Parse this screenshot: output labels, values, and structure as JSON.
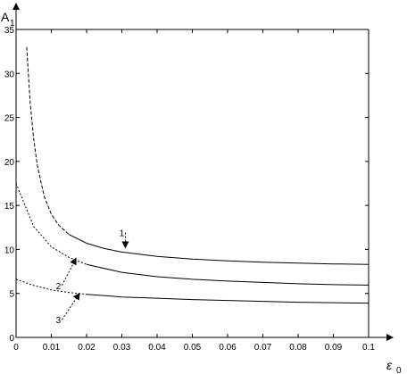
{
  "chart_data": {
    "type": "line",
    "xlabel": "ε",
    "xlabel_sub": "0",
    "ylabel": "A",
    "ylabel_sub": "1",
    "xlim": [
      0,
      0.1
    ],
    "ylim": [
      0,
      35
    ],
    "x_ticks": [
      0,
      0.01,
      0.02,
      0.03,
      0.04,
      0.05,
      0.06,
      0.07,
      0.08,
      0.09,
      0.1
    ],
    "x_tick_labels": [
      "0",
      "0.01",
      "0.02",
      "0.03",
      "0.04",
      "0.05",
      "0.06",
      "0.07",
      "0.08",
      "0.09",
      "0.1"
    ],
    "y_ticks": [
      0,
      5,
      10,
      15,
      20,
      25,
      30,
      35
    ],
    "y_tick_labels": [
      "0",
      "5",
      "10",
      "15",
      "20",
      "25",
      "30",
      "35"
    ],
    "grid": false,
    "series": [
      {
        "name": "1",
        "label_value": [
          0.03,
          11.5
        ],
        "arrow_target": [
          0.031,
          10.2
        ],
        "x": [
          0.003,
          0.004,
          0.005,
          0.006,
          0.008,
          0.01,
          0.012,
          0.015,
          0.02,
          0.025,
          0.03,
          0.04,
          0.05,
          0.06,
          0.07,
          0.08,
          0.09,
          0.1
        ],
        "y": [
          33,
          26.7,
          22.5,
          19.6,
          16.0,
          14.0,
          12.8,
          11.7,
          10.7,
          10.1,
          9.7,
          9.2,
          8.9,
          8.7,
          8.55,
          8.45,
          8.35,
          8.3
        ]
      },
      {
        "name": "2",
        "label_value": [
          0.012,
          5.5
        ],
        "arrow_target": [
          0.017,
          9.0
        ],
        "x": [
          0,
          0.005,
          0.01,
          0.015,
          0.02,
          0.03,
          0.04,
          0.05,
          0.06,
          0.07,
          0.08,
          0.09,
          0.1
        ],
        "y": [
          17.5,
          12.6,
          10.3,
          9.1,
          8.3,
          7.4,
          6.9,
          6.6,
          6.4,
          6.25,
          6.1,
          6.0,
          5.95
        ]
      },
      {
        "name": "3",
        "label_value": [
          0.012,
          1.6
        ],
        "arrow_target": [
          0.018,
          5.0
        ],
        "x": [
          0,
          0.005,
          0.01,
          0.015,
          0.02,
          0.03,
          0.04,
          0.05,
          0.06,
          0.07,
          0.08,
          0.09,
          0.1
        ],
        "y": [
          6.6,
          5.9,
          5.4,
          5.1,
          4.9,
          4.6,
          4.45,
          4.3,
          4.2,
          4.1,
          4.0,
          3.95,
          3.9
        ]
      }
    ]
  }
}
